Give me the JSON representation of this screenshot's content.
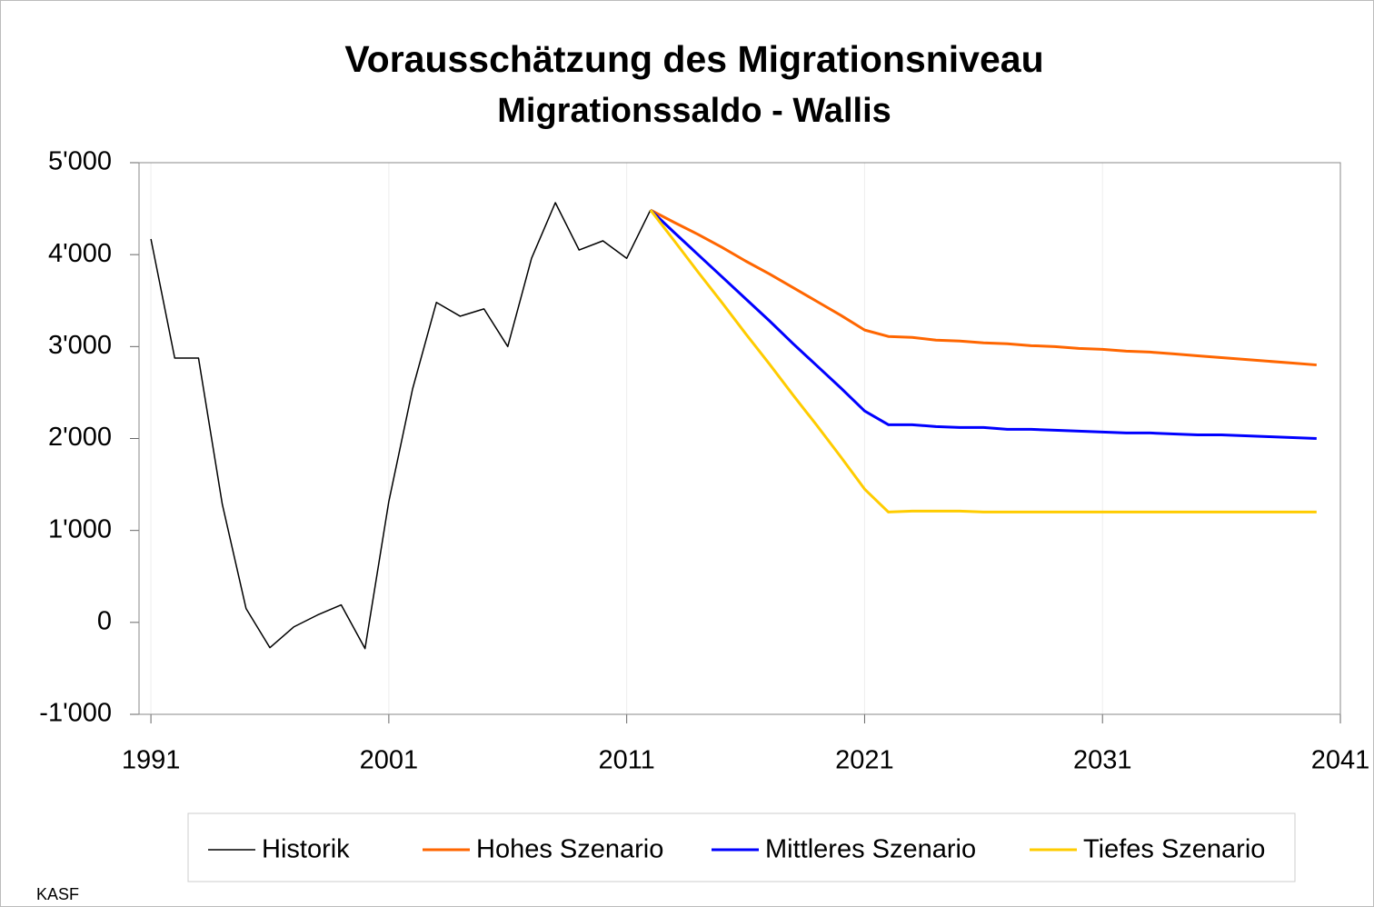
{
  "chart_data": {
    "type": "line",
    "title": "Vorausschätzung des Migrationsniveau",
    "subtitle": "Migrationssaldo - Wallis",
    "source": "KASF",
    "xlim": [
      1990.5,
      2041
    ],
    "xticks": [
      1991,
      2001,
      2011,
      2021,
      2031,
      2041
    ],
    "ylim": [
      -1000,
      5000
    ],
    "yticks": [
      {
        "value": -1000,
        "label": "-1'000"
      },
      0,
      {
        "value": 1000,
        "label": "1'000"
      },
      {
        "value": 2000,
        "label": "2'000"
      },
      {
        "value": 3000,
        "label": "3'000"
      },
      {
        "value": 4000,
        "label": "4'000"
      },
      {
        "value": 5000,
        "label": "5'000"
      }
    ],
    "grid": true,
    "legend": "bottom",
    "series": [
      {
        "name": "Historik",
        "color": "#000000",
        "x": [
          1991,
          1992,
          1993,
          1994,
          1995,
          1996,
          1997,
          1998,
          1999,
          2000,
          2001,
          2002,
          2003,
          2004,
          2005,
          2006,
          2007,
          2008,
          2009,
          2010,
          2011,
          2012
        ],
        "values": [
          4170,
          2875,
          2875,
          1285,
          150,
          -275,
          -50,
          80,
          190,
          -285,
          1315,
          2540,
          3480,
          3330,
          3410,
          3000,
          3960,
          4565,
          4050,
          4150,
          3960,
          4485
        ]
      },
      {
        "name": "Hohes Szenario",
        "color": "#ff6600",
        "x": [
          2012,
          2013,
          2014,
          2015,
          2016,
          2017,
          2018,
          2019,
          2020,
          2021,
          2022,
          2023,
          2024,
          2025,
          2026,
          2027,
          2028,
          2029,
          2030,
          2031,
          2032,
          2033,
          2034,
          2035,
          2036,
          2037,
          2038,
          2039,
          2040
        ],
        "values": [
          4485,
          4350,
          4220,
          4080,
          3930,
          3790,
          3640,
          3490,
          3340,
          3180,
          3110,
          3100,
          3070,
          3060,
          3040,
          3030,
          3010,
          3000,
          2980,
          2970,
          2950,
          2940,
          2920,
          2900,
          2880,
          2860,
          2840,
          2820,
          2800
        ]
      },
      {
        "name": "Mittleres Szenario",
        "color": "#0000ff",
        "x": [
          2012,
          2013,
          2014,
          2015,
          2016,
          2017,
          2018,
          2019,
          2020,
          2021,
          2022,
          2023,
          2024,
          2025,
          2026,
          2027,
          2028,
          2029,
          2030,
          2031,
          2032,
          2033,
          2034,
          2035,
          2036,
          2037,
          2038,
          2039,
          2040
        ],
        "values": [
          4485,
          4240,
          4000,
          3760,
          3520,
          3280,
          3030,
          2790,
          2550,
          2300,
          2150,
          2150,
          2130,
          2120,
          2120,
          2100,
          2100,
          2090,
          2080,
          2070,
          2060,
          2060,
          2050,
          2040,
          2040,
          2030,
          2020,
          2010,
          2000
        ]
      },
      {
        "name": "Tiefes Szenario",
        "color": "#ffcc00",
        "x": [
          2012,
          2013,
          2014,
          2015,
          2016,
          2017,
          2018,
          2019,
          2020,
          2021,
          2022,
          2023,
          2024,
          2025,
          2026,
          2027,
          2028,
          2029,
          2030,
          2031,
          2032,
          2033,
          2034,
          2035,
          2036,
          2037,
          2038,
          2039,
          2040
        ],
        "values": [
          4485,
          4150,
          3810,
          3480,
          3140,
          2810,
          2470,
          2140,
          1800,
          1450,
          1200,
          1210,
          1210,
          1210,
          1200,
          1200,
          1200,
          1200,
          1200,
          1200,
          1200,
          1200,
          1200,
          1200,
          1200,
          1200,
          1200,
          1200,
          1200
        ]
      }
    ]
  }
}
